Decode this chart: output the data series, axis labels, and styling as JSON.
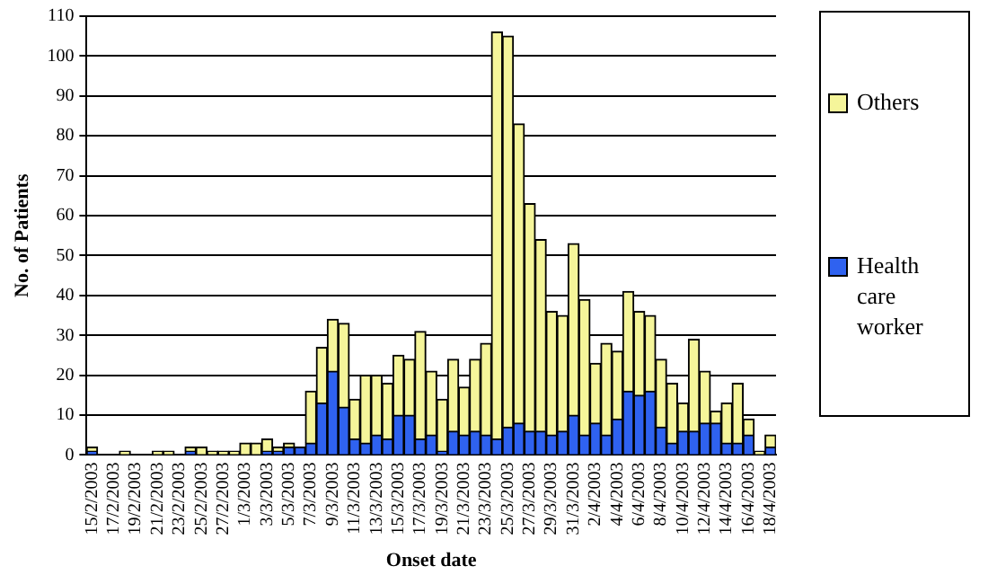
{
  "chart_data": {
    "type": "bar",
    "stacked": true,
    "xlabel": "Onset date",
    "ylabel": "No. of Patients",
    "categories": [
      "15/2/2003",
      null,
      "17/2/2003",
      null,
      "19/2/2003",
      null,
      "21/2/2003",
      null,
      "23/2/2003",
      null,
      "25/2/2003",
      null,
      "27/2/2003",
      null,
      "1/3/2003",
      null,
      "3/3/2003",
      null,
      "5/3/2003",
      null,
      "7/3/2003",
      null,
      "9/3/2003",
      null,
      "11/3/2003",
      null,
      "13/3/2003",
      null,
      "15/3/2003",
      null,
      "17/3/2003",
      null,
      "19/3/2003",
      null,
      "21/3/2003",
      null,
      "23/3/2003",
      null,
      "25/3/2003",
      null,
      "27/3/2003",
      null,
      "29/3/2003",
      null,
      "31/3/2003",
      null,
      "2/4/2003",
      null,
      "4/4/2003",
      null,
      "6/4/2003",
      null,
      "8/4/2003",
      null,
      "10/4/2003",
      null,
      "12/4/2003",
      null,
      "14/4/2003",
      null,
      "16/4/2003",
      null,
      "18/4/2003"
    ],
    "series": [
      {
        "name": "Health care worker",
        "color": "#2f62f0",
        "values": [
          1,
          0,
          0,
          0,
          0,
          0,
          0,
          0,
          0,
          1,
          0,
          0,
          0,
          0,
          0,
          0,
          1,
          1,
          2,
          2,
          3,
          13,
          21,
          12,
          4,
          3,
          5,
          4,
          10,
          10,
          4,
          5,
          1,
          6,
          5,
          6,
          5,
          4,
          7,
          8,
          6,
          6,
          5,
          6,
          10,
          5,
          8,
          5,
          9,
          16,
          15,
          16,
          7,
          3,
          6,
          6,
          8,
          8,
          3,
          3,
          5,
          0,
          2
        ]
      },
      {
        "name": "Others",
        "color": "#f5f59a",
        "values": [
          1,
          0,
          0,
          1,
          0,
          0,
          1,
          1,
          0,
          1,
          2,
          1,
          1,
          1,
          3,
          3,
          3,
          1,
          1,
          0,
          13,
          14,
          13,
          21,
          10,
          17,
          15,
          14,
          15,
          14,
          27,
          16,
          13,
          18,
          12,
          18,
          23,
          102,
          98,
          75,
          57,
          48,
          31,
          29,
          43,
          34,
          15,
          23,
          17,
          25,
          21,
          19,
          17,
          15,
          7,
          23,
          13,
          3,
          10,
          15,
          4,
          1,
          3
        ]
      }
    ],
    "ylim": [
      0,
      110
    ],
    "yticks": [
      0,
      10,
      20,
      30,
      40,
      50,
      60,
      70,
      80,
      90,
      100,
      110
    ],
    "grid": "y",
    "legend": "right"
  }
}
